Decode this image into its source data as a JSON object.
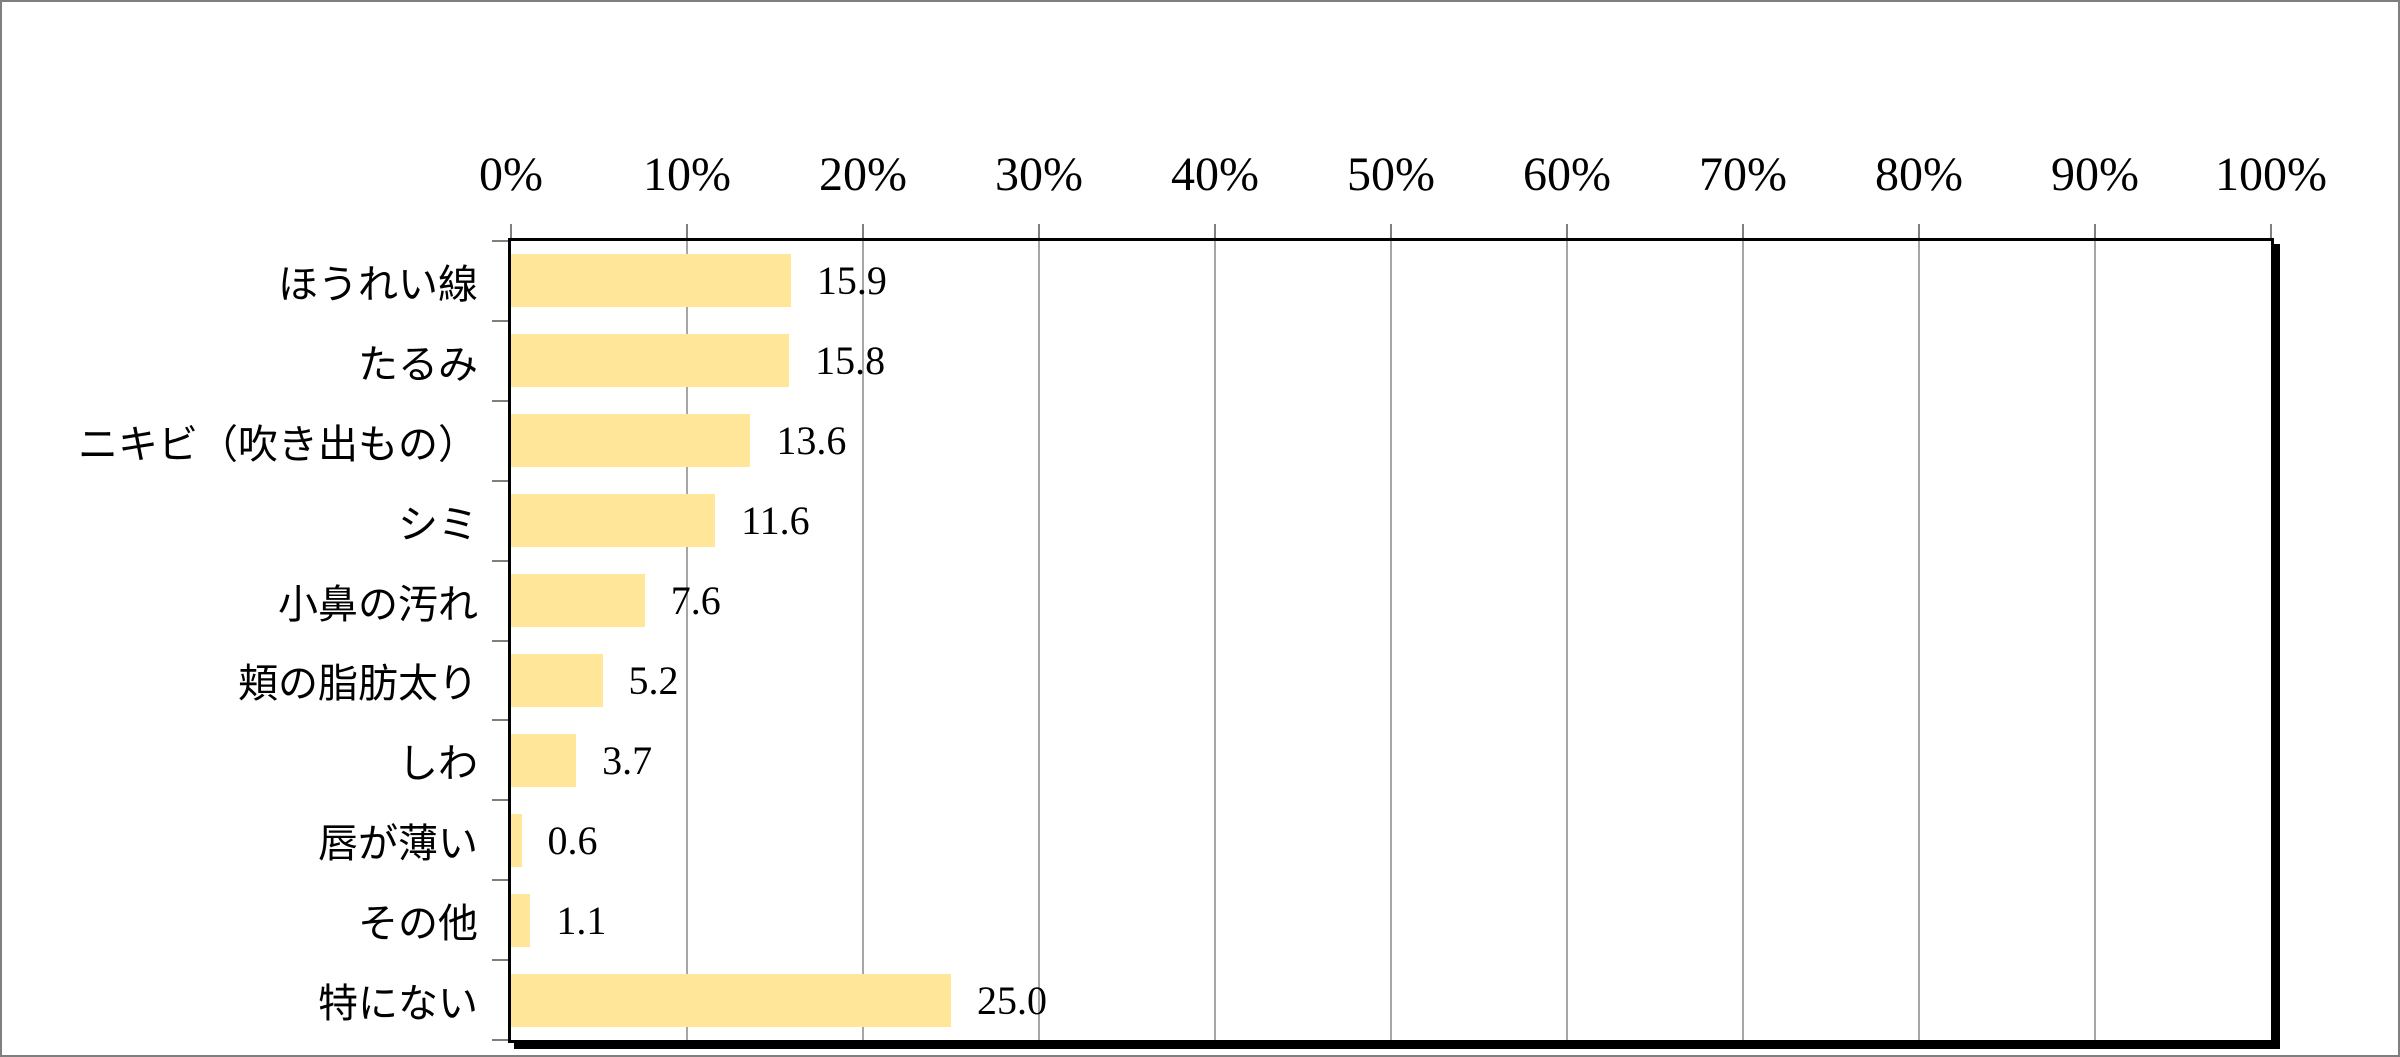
{
  "chart_data": {
    "type": "bar",
    "orientation": "horizontal",
    "title": "",
    "xlabel": "",
    "ylabel": "",
    "categories": [
      "ほうれい線",
      "たるみ",
      "ニキビ（吹き出もの）",
      "シミ",
      "小鼻の汚れ",
      "頬の脂肪太り",
      "しわ",
      "唇が薄い",
      "その他",
      "特にない"
    ],
    "values": [
      15.9,
      15.8,
      13.6,
      11.6,
      7.6,
      5.2,
      3.7,
      0.6,
      1.1,
      25.0
    ],
    "value_labels": [
      "15.9",
      "15.8",
      "13.6",
      "11.6",
      "7.6",
      "5.2",
      "3.7",
      "0.6",
      "1.1",
      "25.0"
    ],
    "x_axis": {
      "tick_labels": [
        "0%",
        "10%",
        "20%",
        "30%",
        "40%",
        "50%",
        "60%",
        "70%",
        "80%",
        "90%",
        "100%"
      ],
      "min": 0,
      "max": 100,
      "step": 10
    },
    "grid": true,
    "legend": false,
    "colors": {
      "bar_fill": "#FFE699",
      "gridline": "#A6A6A6",
      "tick_mark": "#7F7F7F",
      "plot_border": "#000000",
      "plot_shadow": "#000000",
      "outer_frame": "#7F7F7F",
      "text": "#000000",
      "background": "#FFFFFF"
    }
  }
}
